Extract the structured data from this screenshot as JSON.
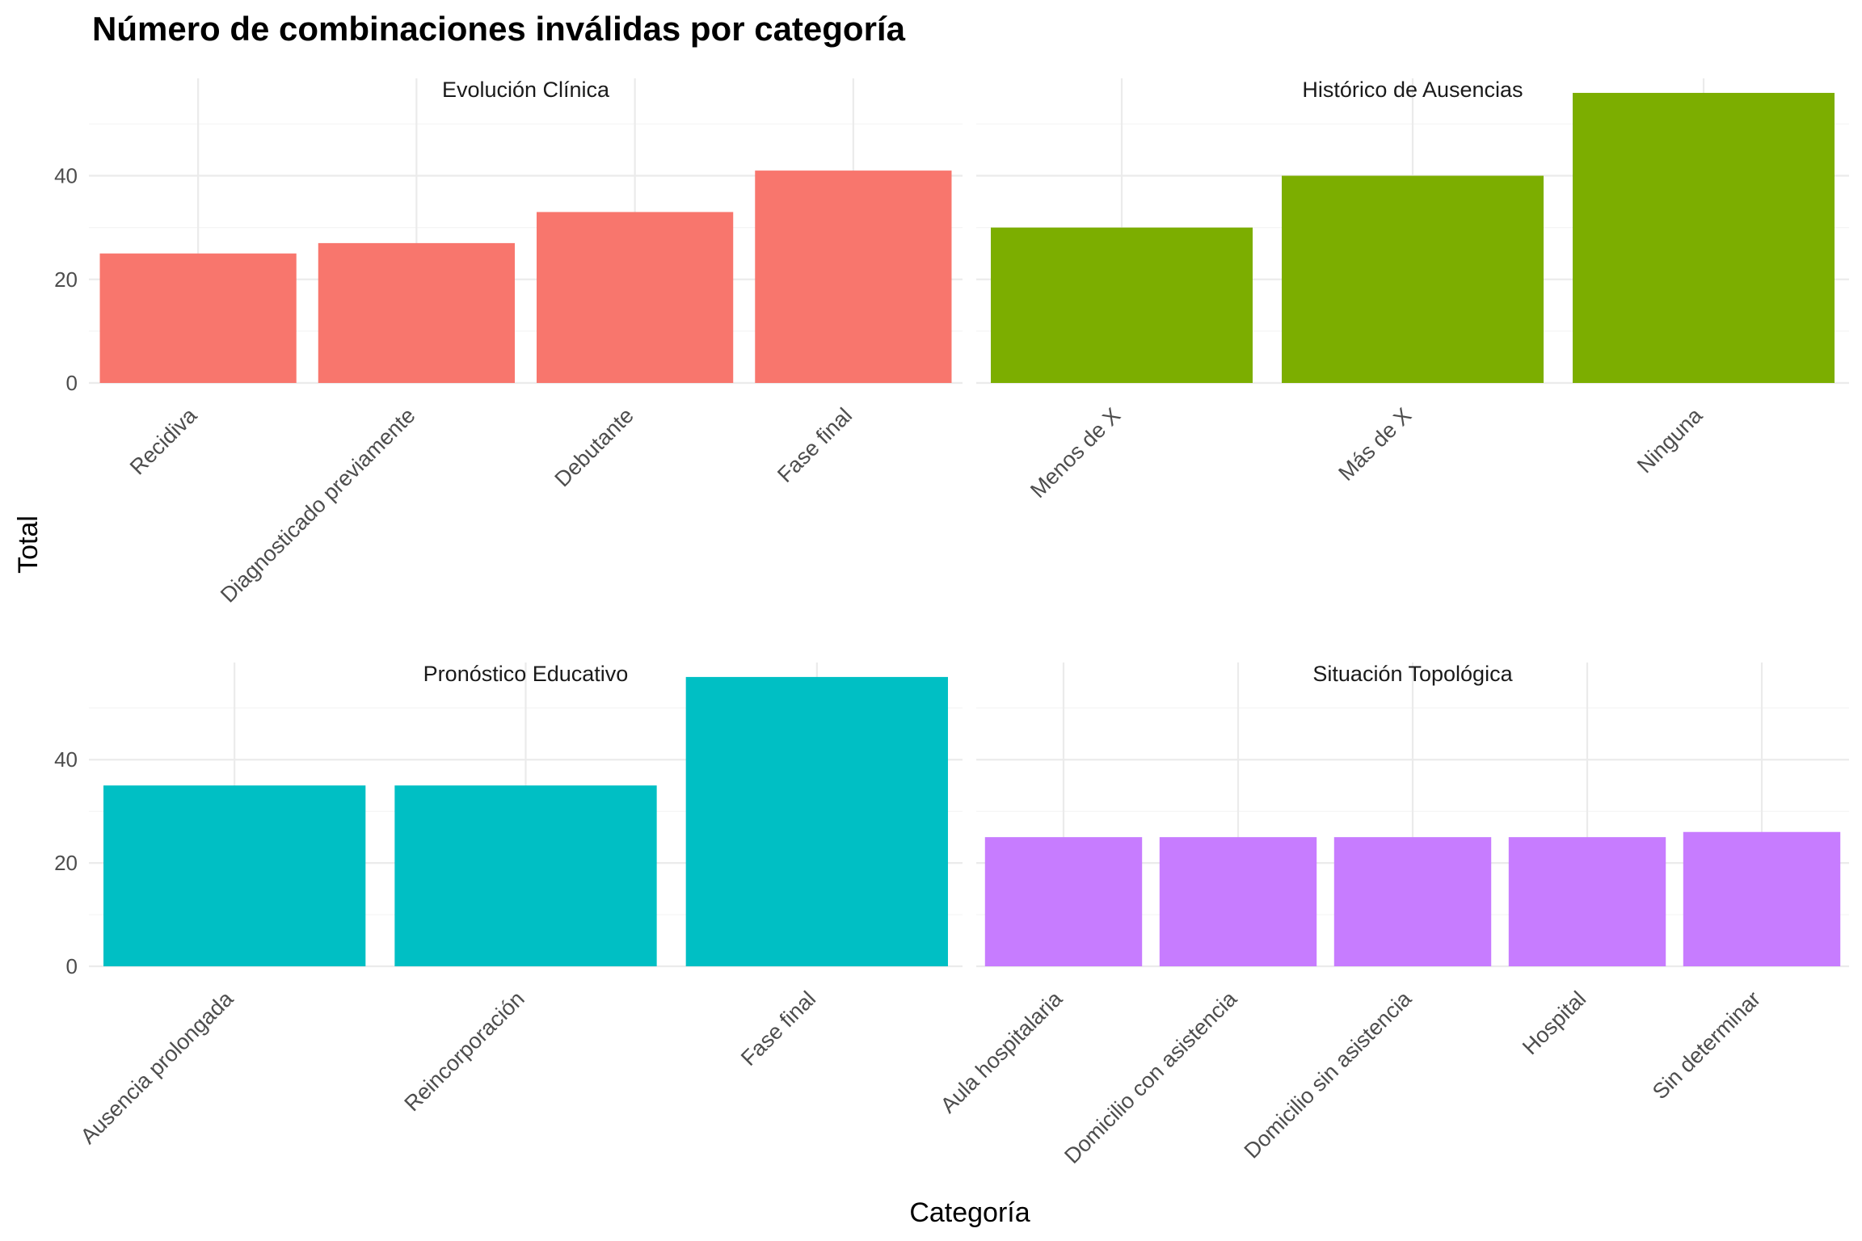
{
  "chart_data": {
    "type": "bar",
    "title": "Número de combinaciones inválidas por categoría",
    "xlabel": "Categoría",
    "ylabel": "Total",
    "ylim": [
      0,
      56
    ],
    "y_ticks": [
      0,
      20,
      40
    ],
    "grid": true,
    "legend": "none",
    "panels": [
      {
        "name": "Evolución Clínica",
        "color": "#F8766D",
        "categories": [
          "Recidiva",
          "Diagnosticado previamente",
          "Debutante",
          "Fase final"
        ],
        "values": [
          25,
          27,
          33,
          41
        ]
      },
      {
        "name": "Histórico de Ausencias",
        "color": "#7CAE00",
        "categories": [
          "Menos de X",
          "Más de X",
          "Ninguna"
        ],
        "values": [
          30,
          40,
          56
        ]
      },
      {
        "name": "Pronóstico Educativo",
        "color": "#00BFC4",
        "categories": [
          "Ausencia prolongada",
          "Reincorporación",
          "Fase final"
        ],
        "values": [
          35,
          35,
          56
        ]
      },
      {
        "name": "Situación Topológica",
        "color": "#C77CFF",
        "categories": [
          "Aula hospitalaria",
          "Domicilio con asistencia",
          "Domicilio sin asistencia",
          "Hospital",
          "Sin determinar"
        ],
        "values": [
          25,
          25,
          25,
          25,
          26
        ]
      }
    ]
  }
}
